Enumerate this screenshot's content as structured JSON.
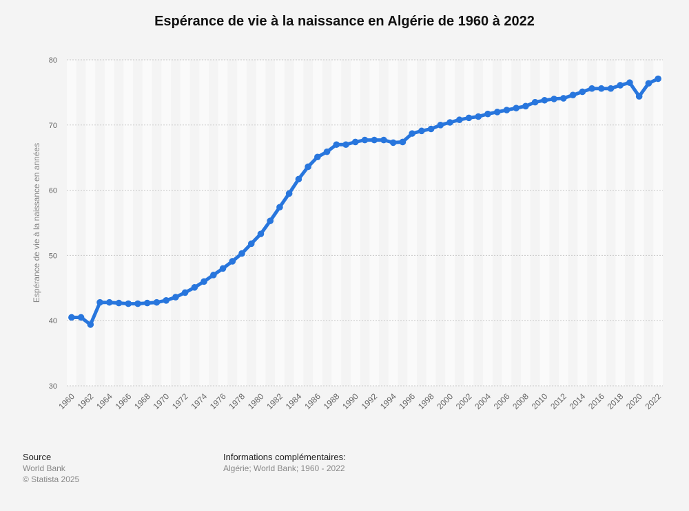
{
  "chart_data": {
    "type": "line",
    "title": "Espérance de vie à la naissance en Algérie de 1960 à 2022",
    "ylabel": "Espérance de vie à la naissance en années",
    "xlabel": "",
    "ylim": [
      30,
      80
    ],
    "yticks": [
      30,
      40,
      50,
      60,
      70,
      80
    ],
    "grid": true,
    "x": [
      1960,
      1961,
      1962,
      1963,
      1964,
      1965,
      1966,
      1967,
      1968,
      1969,
      1970,
      1971,
      1972,
      1973,
      1974,
      1975,
      1976,
      1977,
      1978,
      1979,
      1980,
      1981,
      1982,
      1983,
      1984,
      1985,
      1986,
      1987,
      1988,
      1989,
      1990,
      1991,
      1992,
      1993,
      1994,
      1995,
      1996,
      1997,
      1998,
      1999,
      2000,
      2001,
      2002,
      2003,
      2004,
      2005,
      2006,
      2007,
      2008,
      2009,
      2010,
      2011,
      2012,
      2013,
      2014,
      2015,
      2016,
      2017,
      2018,
      2019,
      2020,
      2021,
      2022
    ],
    "xtick_labels": [
      "1960",
      "1962",
      "1964",
      "1966",
      "1968",
      "1970",
      "1972",
      "1974",
      "1976",
      "1978",
      "1980",
      "1982",
      "1984",
      "1986",
      "1988",
      "1990",
      "1992",
      "1994",
      "1996",
      "1998",
      "2000",
      "2002",
      "2004",
      "2006",
      "2008",
      "2010",
      "2012",
      "2014",
      "2016",
      "2018",
      "2020",
      "2022"
    ],
    "series": [
      {
        "values": [
          40.5,
          40.5,
          39.4,
          42.8,
          42.8,
          42.7,
          42.6,
          42.6,
          42.7,
          42.8,
          43.1,
          43.6,
          44.3,
          45.1,
          46.0,
          47.0,
          48.0,
          49.1,
          50.3,
          51.8,
          53.3,
          55.3,
          57.4,
          59.5,
          61.7,
          63.6,
          65.1,
          65.9,
          67.0,
          67.0,
          67.4,
          67.7,
          67.7,
          67.7,
          67.3,
          67.4,
          68.7,
          69.1,
          69.4,
          70.0,
          70.4,
          70.8,
          71.1,
          71.3,
          71.7,
          72.0,
          72.3,
          72.6,
          72.9,
          73.5,
          73.8,
          74.0,
          74.1,
          74.6,
          75.1,
          75.6,
          75.6,
          75.6,
          76.1,
          76.5,
          74.4,
          76.4,
          77.1
        ],
        "color": "#2876dd"
      }
    ]
  },
  "footer": {
    "source_heading": "Source",
    "source_line1": "World Bank",
    "source_line2": "© Statista 2025",
    "info_heading": "Informations complémentaires:",
    "info_line": "Algérie; World Bank; 1960 - 2022"
  }
}
